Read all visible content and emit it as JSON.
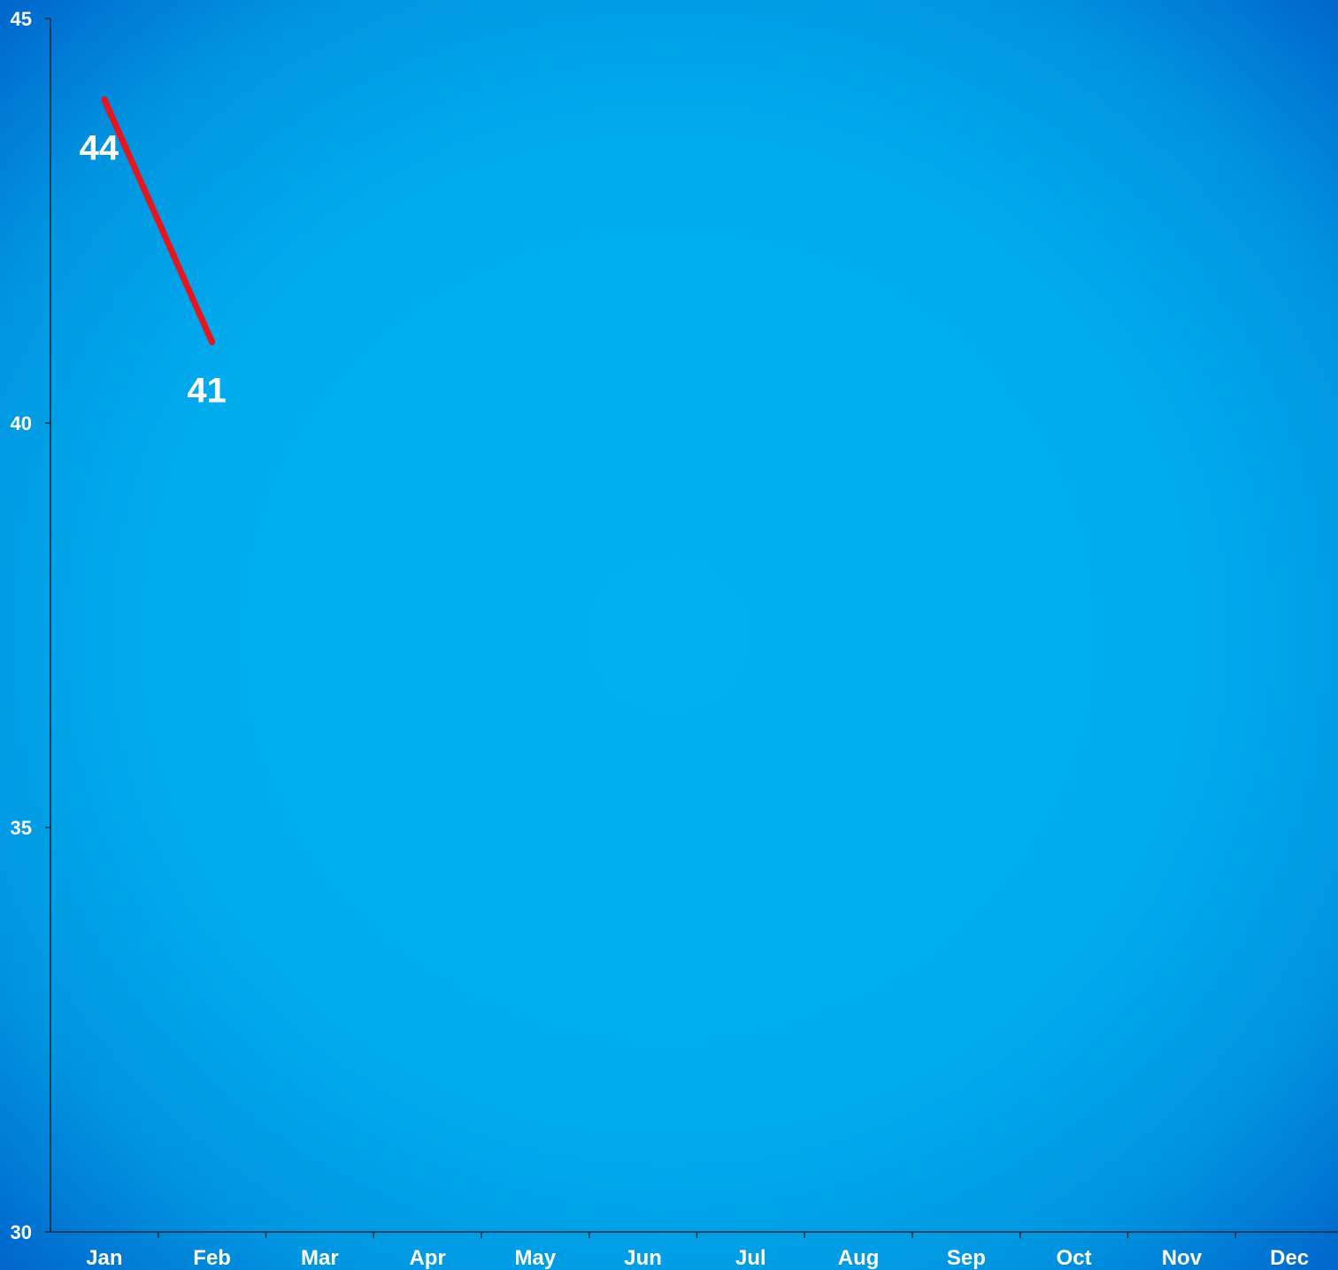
{
  "chart_data": {
    "type": "line",
    "title": "",
    "xlabel": "",
    "ylabel": "",
    "categories": [
      "Jan",
      "Feb",
      "Mar",
      "Apr",
      "May",
      "Jun",
      "Jul",
      "Aug",
      "Sep",
      "Oct",
      "Nov",
      "Dec"
    ],
    "series": [
      {
        "values": [
          44,
          41,
          null,
          null,
          null,
          null,
          null,
          null,
          null,
          null,
          null,
          null
        ],
        "color": "#e8141e"
      }
    ],
    "data_labels": [
      "44",
      "41"
    ],
    "ylim": [
      30,
      45
    ],
    "yticks": [
      30,
      35,
      40,
      45
    ],
    "ytick_labels": [
      "30",
      "35",
      "40",
      "45"
    ],
    "grid": false,
    "legend": "none",
    "colors": {
      "background_center": "#00b0f0",
      "background_edge": "#0070d0",
      "axis": "#1a2a3a",
      "text": "#ffffff"
    }
  }
}
